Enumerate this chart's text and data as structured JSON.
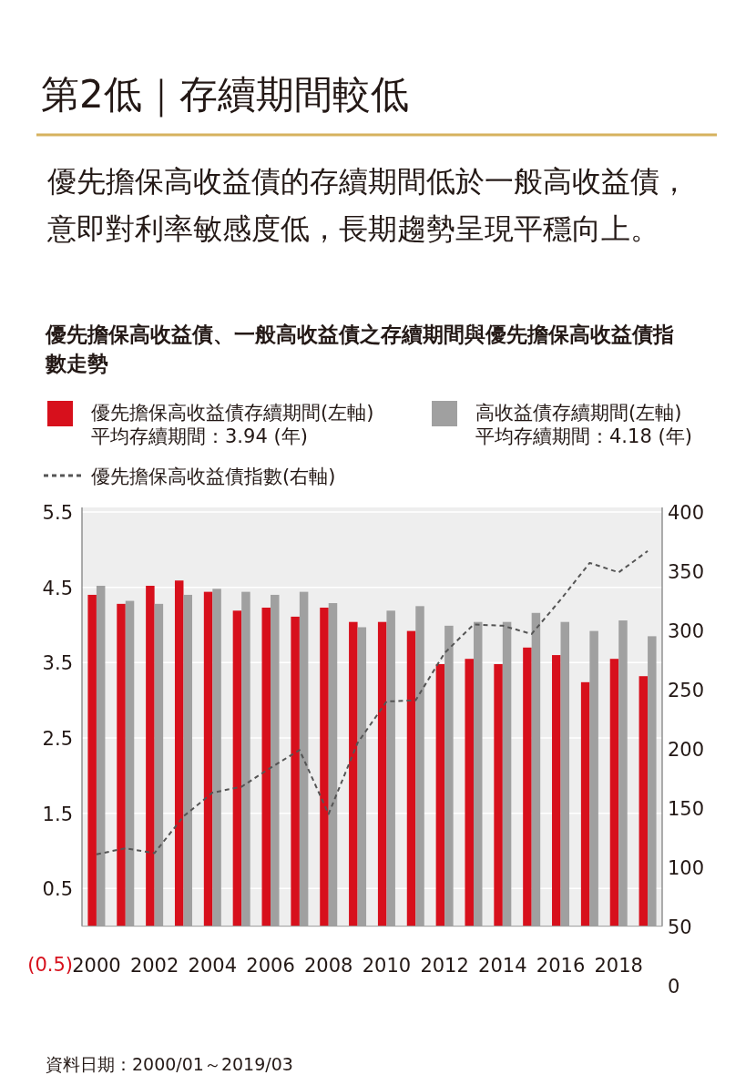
{
  "chart_data": {
    "type": "bar",
    "title": "第2低｜存續期間較低",
    "subtitle": "優先擔保高收益債的存續期間低於一般高收益債，意即對利率敏感度低，長期趨勢呈現平穩向上。",
    "annotations": [
      "優先擔保高收益債、一般高收益債之存續期間與優先擔保高收益債指數走勢",
      "資料日期：2000/01～2019/03"
    ],
    "categories": [
      "2000",
      null,
      "2002",
      null,
      "2004",
      null,
      "2006",
      null,
      "2008",
      null,
      "2010",
      null,
      "2012",
      null,
      "2014",
      null,
      "2016",
      null,
      "2018",
      null
    ],
    "series": [
      {
        "name": "優先擔保高收益債存續期間(左軸)\n平均存續期間：3.94 (年)",
        "color": "#d7101c",
        "values": [
          4.4,
          4.28,
          4.52,
          4.59,
          4.44,
          4.19,
          4.23,
          4.11,
          4.23,
          4.04,
          4.04,
          3.92,
          3.48,
          3.55,
          3.48,
          3.7,
          3.6,
          3.24,
          3.55,
          3.32
        ]
      },
      {
        "name": "高收益債存續期間(左軸)\n平均存續期間：4.18 (年)",
        "color": "#a0a0a0",
        "values": [
          4.52,
          4.32,
          4.28,
          4.4,
          4.48,
          4.44,
          4.4,
          4.44,
          4.29,
          3.97,
          4.19,
          4.25,
          3.99,
          4.04,
          4.04,
          4.16,
          4.04,
          3.92,
          4.06,
          3.85
        ]
      },
      {
        "name": "優先擔保高收益債指數(右軸)",
        "type": "line",
        "axis": "y2",
        "color": "#555555",
        "line_style": "dashed",
        "marker": "none",
        "values": [
          111,
          116,
          112,
          143,
          163,
          168,
          184,
          199,
          145,
          205,
          240,
          241,
          281,
          305,
          304,
          297,
          326,
          357,
          349,
          367
        ]
      }
    ],
    "ylim": [
      -0.5,
      5.5
    ],
    "yticks": [
      5.5,
      4.5,
      3.5,
      2.5,
      1.5,
      0.5,
      {
        "value": -0.5,
        "label": "(0.5)"
      }
    ],
    "y2lim": [
      0,
      400
    ],
    "y2ticks": [
      0,
      50,
      100,
      150,
      200,
      250,
      300,
      350,
      400
    ],
    "grid": "y",
    "legend": "top"
  }
}
